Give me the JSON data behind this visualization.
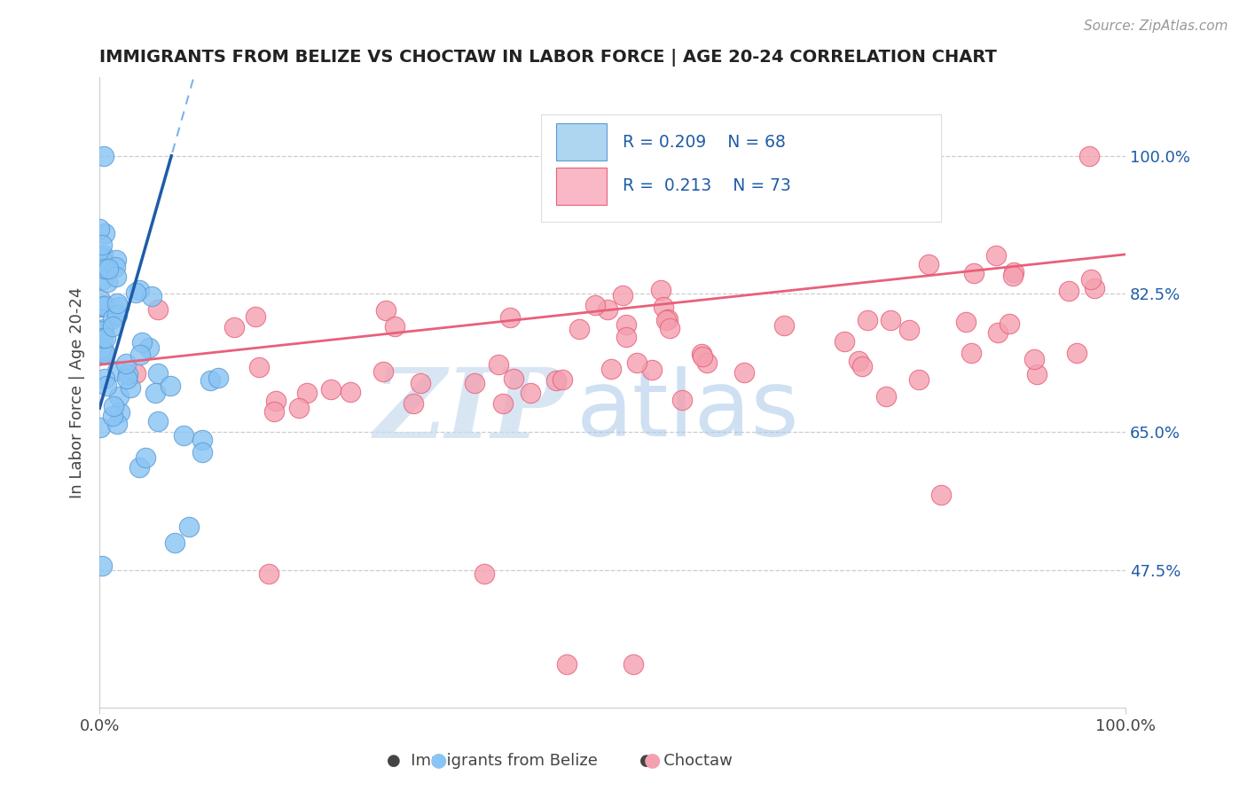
{
  "title": "IMMIGRANTS FROM BELIZE VS CHOCTAW IN LABOR FORCE | AGE 20-24 CORRELATION CHART",
  "source_text": "Source: ZipAtlas.com",
  "ylabel": "In Labor Force | Age 20-24",
  "y_tick_values": [
    0.475,
    0.65,
    0.825,
    1.0
  ],
  "y_tick_labels": [
    "47.5%",
    "65.0%",
    "82.5%",
    "100.0%"
  ],
  "xlim": [
    0.0,
    1.0
  ],
  "ylim": [
    0.3,
    1.1
  ],
  "belize_color": "#89C4F4",
  "belize_edge_color": "#5B9BD5",
  "choctaw_color": "#F4A0B0",
  "choctaw_edge_color": "#E8607A",
  "choctaw_line_color": "#E8607A",
  "belize_line_color": "#1E5CA8",
  "belize_dash_color": "#7EB3E8",
  "watermark_zip_color": "#C8DCF0",
  "watermark_atlas_color": "#A8C8E8",
  "legend_text_color": "#1E5CA8",
  "right_axis_color": "#1E5CA8",
  "source_color": "#999999"
}
